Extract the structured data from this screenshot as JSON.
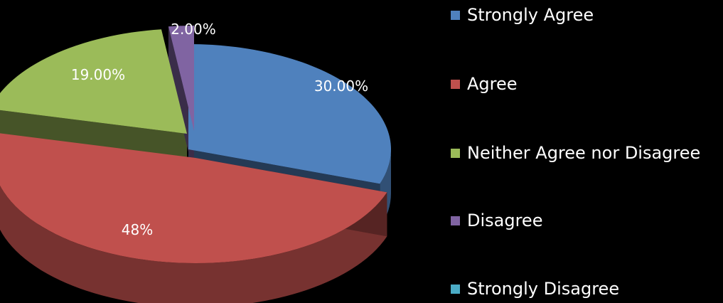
{
  "chart_data": {
    "type": "pie",
    "title": "",
    "style": "3d-exploded",
    "legend_position": "right",
    "slices": [
      {
        "name": "Strongly Agree",
        "value": 30,
        "label": "30.00%",
        "color": "#4f81bd"
      },
      {
        "name": "Agree",
        "value": 48,
        "label": "48%",
        "color": "#c0504d"
      },
      {
        "name": "Neither Agree nor Disagree",
        "value": 19,
        "label": "19.00%",
        "color": "#9bbb59"
      },
      {
        "name": "Disagree",
        "value": 2,
        "label": "2.00%",
        "color": "#8064a2"
      },
      {
        "name": "Strongly Disagree",
        "value": 0,
        "label": "",
        "color": "#4bacc6"
      }
    ]
  }
}
